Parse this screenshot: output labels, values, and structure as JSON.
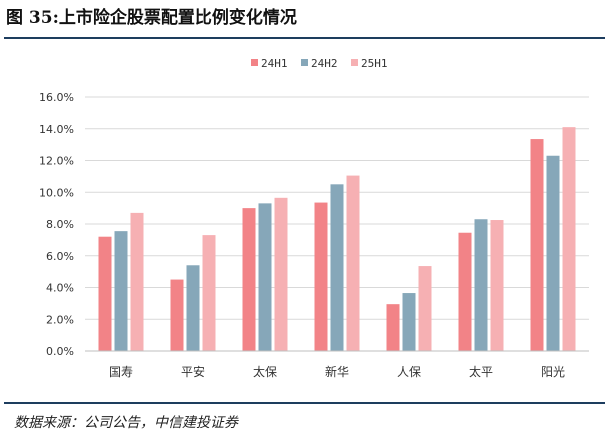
{
  "figure": {
    "title": "图 35:上市险企股票配置比例变化情况",
    "source": "数据来源：公司公告，中信建投证券"
  },
  "chart_data": {
    "type": "bar",
    "title": "图 35:上市险企股票配置比例变化情况",
    "categories": [
      "国寿",
      "平安",
      "太保",
      "新华",
      "人保",
      "太平",
      "阳光"
    ],
    "series": [
      {
        "name": "24H1",
        "color": "#f28387",
        "values": [
          7.2,
          4.5,
          9.0,
          9.35,
          2.95,
          7.45,
          13.35
        ]
      },
      {
        "name": "24H2",
        "color": "#86a7b9",
        "values": [
          7.55,
          5.4,
          9.3,
          10.5,
          3.65,
          8.3,
          12.3
        ]
      },
      {
        "name": "25H1",
        "color": "#f6b0b3",
        "values": [
          8.7,
          7.3,
          9.65,
          11.05,
          5.35,
          8.25,
          14.1
        ]
      }
    ],
    "yticks": [
      "0.0%",
      "2.0%",
      "4.0%",
      "6.0%",
      "8.0%",
      "10.0%",
      "12.0%",
      "14.0%",
      "16.0%"
    ],
    "ylim": [
      0,
      16
    ],
    "xlabel": "",
    "ylabel": "",
    "grid": true,
    "legend_position": "top-center"
  }
}
